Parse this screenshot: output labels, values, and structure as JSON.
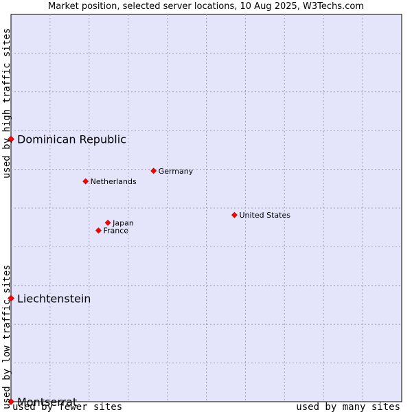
{
  "chart_data": {
    "type": "scatter",
    "title": "Market position, selected server locations, 10 Aug 2025, W3Techs.com",
    "xlabel_low": "used by fewer sites",
    "xlabel_high": "used by many sites",
    "ylabel_low": "used by low traffic sites",
    "ylabel_high": "used by high traffic sites",
    "xlim": [
      0,
      100
    ],
    "ylim": [
      0,
      100
    ],
    "grid": true,
    "points": [
      {
        "name": "Dominican Republic",
        "x": 0.0,
        "y": 67.8,
        "emphasis": true
      },
      {
        "name": "Liechtenstein",
        "x": 0.0,
        "y": 26.7,
        "emphasis": true
      },
      {
        "name": "Montserrat",
        "x": 0.0,
        "y": 0.0,
        "emphasis": true
      },
      {
        "name": "Germany",
        "x": 36.5,
        "y": 59.6,
        "emphasis": false
      },
      {
        "name": "Netherlands",
        "x": 19.1,
        "y": 56.9,
        "emphasis": false
      },
      {
        "name": "United States",
        "x": 57.2,
        "y": 48.2,
        "emphasis": false
      },
      {
        "name": "Japan",
        "x": 24.8,
        "y": 46.2,
        "emphasis": false
      },
      {
        "name": "France",
        "x": 22.4,
        "y": 44.2,
        "emphasis": false
      }
    ]
  }
}
